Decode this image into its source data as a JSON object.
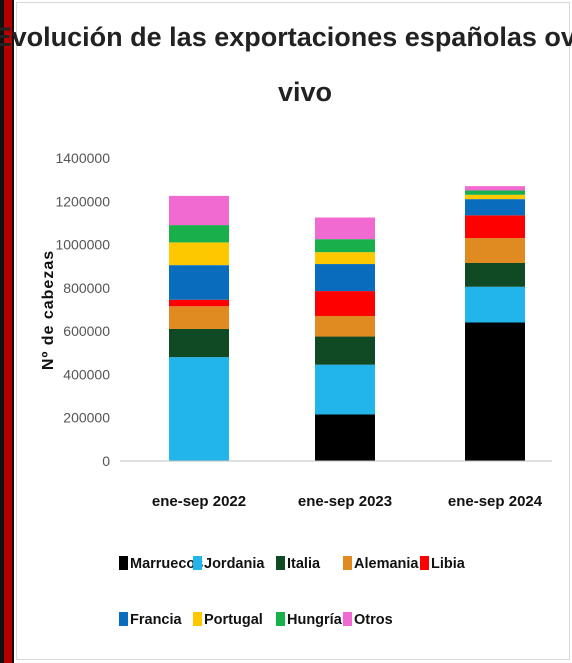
{
  "chart_data": {
    "type": "bar",
    "stacked": true,
    "title_lines": [
      "Evolución de las exportaciones españolas ovino",
      "vivo"
    ],
    "xlabel": "",
    "ylabel": "Nº de cabezas",
    "ylim": [
      0,
      1400000
    ],
    "yticks": [
      "0",
      "200000",
      "400000",
      "600000",
      "800000",
      "1000000",
      "1200000",
      "1400000"
    ],
    "grid": false,
    "legend_position": "bottom",
    "categories": [
      "ene-sep 2022",
      "ene-sep 2023",
      "ene-sep 2024"
    ],
    "series": [
      {
        "name": "Marruecos",
        "color": "#000000",
        "values": [
          0,
          215000,
          640000
        ]
      },
      {
        "name": "Jordania",
        "color": "#22b5ec",
        "values": [
          480000,
          230000,
          165000
        ]
      },
      {
        "name": "Italia",
        "color": "#0f4a24",
        "values": [
          130000,
          130000,
          110000
        ]
      },
      {
        "name": "Alemania",
        "color": "#e08a22",
        "values": [
          105000,
          95000,
          115000
        ]
      },
      {
        "name": "Libia",
        "color": "#ff0000",
        "values": [
          30000,
          115000,
          105000
        ]
      },
      {
        "name": "Francia",
        "color": "#0a6cbd",
        "values": [
          160000,
          125000,
          75000
        ]
      },
      {
        "name": "Portugal",
        "color": "#fec800",
        "values": [
          105000,
          55000,
          20000
        ]
      },
      {
        "name": "Hungría",
        "color": "#18b04a",
        "values": [
          80000,
          60000,
          20000
        ]
      },
      {
        "name": "Otros",
        "color": "#f06ad2",
        "values": [
          135000,
          100000,
          20000
        ]
      }
    ]
  }
}
